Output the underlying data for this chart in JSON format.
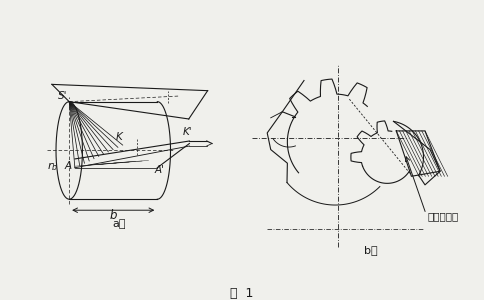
{
  "bg_color": "#f0f0ec",
  "line_color": "#1a1a1a",
  "title": "图  1",
  "label_a": "a）",
  "label_b": "b）",
  "label_contact": "齿面接触线"
}
